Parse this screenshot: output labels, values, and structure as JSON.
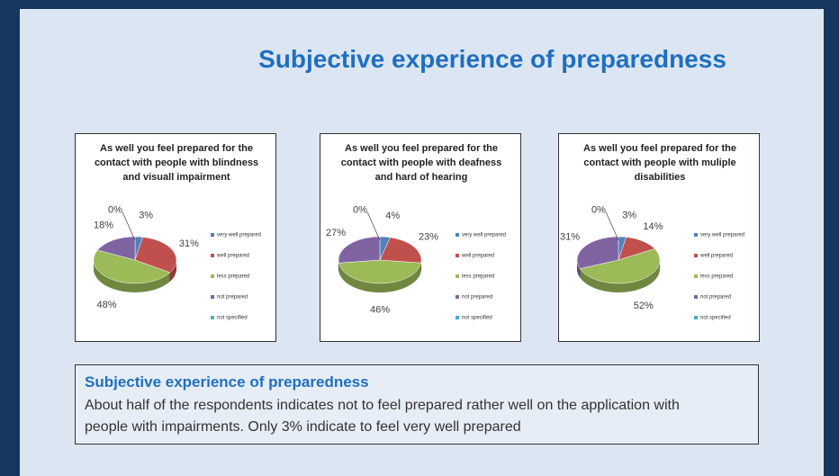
{
  "title": "Subjective experience of preparedness",
  "chart_data": [
    {
      "type": "pie",
      "title": "As well you feel prepared for the contact with people with blindness and visuall impairment",
      "categories": [
        "very well prepared",
        "well prepared",
        "less prepared",
        "not prepared",
        "not specified"
      ],
      "values": [
        3,
        31,
        48,
        18,
        0
      ],
      "value_labels": [
        "3%",
        "31%",
        "48%",
        "18%",
        "0%"
      ],
      "colors": [
        "#4f81bd",
        "#c0504d",
        "#9bbb59",
        "#8064a2",
        "#4bacc6"
      ],
      "legend": "right"
    },
    {
      "type": "pie",
      "title": "As well you feel prepared for the contact with people with deafness and hard of hearing",
      "categories": [
        "very well prepared",
        "well prepared",
        "less prepared",
        "not prepared",
        "not specified"
      ],
      "values": [
        4,
        23,
        46,
        27,
        0
      ],
      "value_labels": [
        "4%",
        "23%",
        "46%",
        "27%",
        "0%"
      ],
      "colors": [
        "#4f81bd",
        "#c0504d",
        "#9bbb59",
        "#8064a2",
        "#4bacc6"
      ],
      "legend": "right"
    },
    {
      "type": "pie",
      "title": "As well you feel prepared for the contact with people with muliple disabilities",
      "categories": [
        "very well prepared",
        "well prepared",
        "less prepared",
        "not prepared",
        "not specified"
      ],
      "values": [
        3,
        14,
        52,
        31,
        0
      ],
      "value_labels": [
        "3%",
        "14%",
        "52%",
        "31%",
        "0%"
      ],
      "colors": [
        "#4f81bd",
        "#c0504d",
        "#9bbb59",
        "#8064a2",
        "#4bacc6"
      ],
      "legend": "right"
    }
  ],
  "summary": {
    "heading": "Subjective experience of preparedness",
    "text": "About half of the respondents indicates not to feel prepared rather well on the application with people with impairments. Only 3% indicate to feel very well prepared"
  }
}
